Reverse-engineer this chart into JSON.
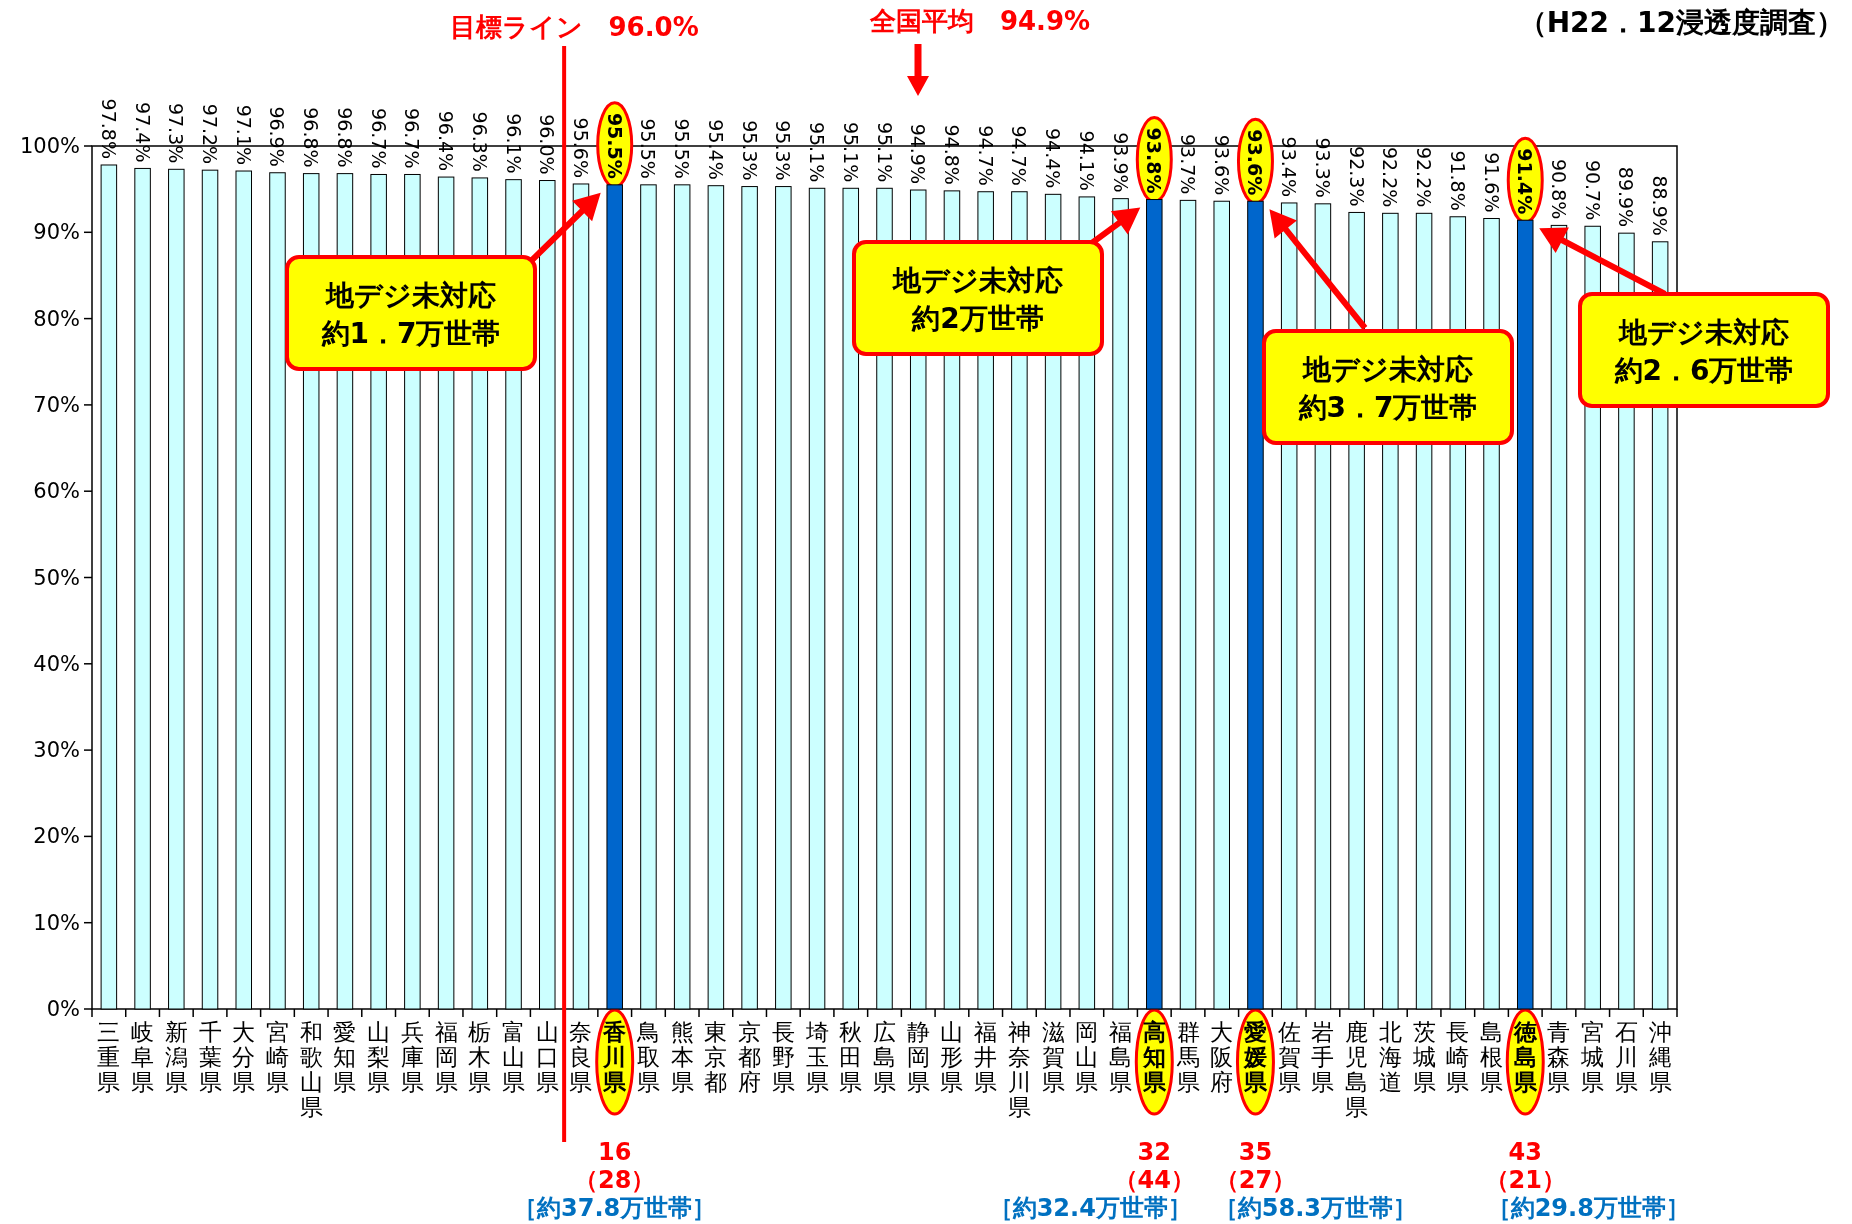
{
  "chart_data": {
    "type": "bar",
    "subtitle": "（H22．12浸透度調査）",
    "categories": [
      "三重県",
      "岐阜県",
      "新潟県",
      "千葉県",
      "大分県",
      "宮崎県",
      "和歌山県",
      "愛知県",
      "山梨県",
      "兵庫県",
      "福岡県",
      "栃木県",
      "富山県",
      "山口県",
      "奈良県",
      "香川県",
      "鳥取県",
      "熊本県",
      "東京都",
      "京都府",
      "長野県",
      "埼玉県",
      "秋田県",
      "広島県",
      "静岡県",
      "山形県",
      "福井県",
      "神奈川県",
      "滋賀県",
      "岡山県",
      "福島県",
      "高知県",
      "群馬県",
      "大阪府",
      "愛媛県",
      "佐賀県",
      "岩手県",
      "鹿児島県",
      "北海道",
      "茨城県",
      "長崎県",
      "島根県",
      "徳島県",
      "青森県",
      "宮城県",
      "石川県",
      "沖縄県"
    ],
    "values": [
      97.8,
      97.4,
      97.3,
      97.2,
      97.1,
      96.9,
      96.8,
      96.8,
      96.7,
      96.7,
      96.4,
      96.3,
      96.1,
      96.0,
      95.6,
      95.5,
      95.5,
      95.5,
      95.4,
      95.3,
      95.3,
      95.1,
      95.1,
      95.1,
      94.9,
      94.8,
      94.7,
      94.7,
      94.4,
      94.1,
      93.9,
      93.8,
      93.7,
      93.6,
      93.6,
      93.4,
      93.3,
      92.3,
      92.2,
      92.2,
      91.8,
      91.6,
      91.4,
      90.8,
      90.7,
      89.9,
      88.9
    ],
    "value_labels": [
      "97.8%",
      "97.4%",
      "97.3%",
      "97.2%",
      "97.1%",
      "96.9%",
      "96.8%",
      "96.8%",
      "96.7%",
      "96.7%",
      "96.4%",
      "96.3%",
      "96.1%",
      "96.0%",
      "95.6%",
      "95.5%",
      "95.5%",
      "95.5%",
      "95.4%",
      "95.3%",
      "95.3%",
      "95.1%",
      "95.1%",
      "95.1%",
      "94.9%",
      "94.8%",
      "94.7%",
      "94.7%",
      "94.4%",
      "94.1%",
      "93.9%",
      "93.8%",
      "93.7%",
      "93.6%",
      "93.6%",
      "93.4%",
      "93.3%",
      "92.3%",
      "92.2%",
      "92.2%",
      "91.8%",
      "91.6%",
      "91.4%",
      "90.8%",
      "90.7%",
      "89.9%",
      "88.9%"
    ],
    "colors": [
      "#ccffff",
      "#ccffff",
      "#ccffff",
      "#ccffff",
      "#ccffff",
      "#ccffff",
      "#ccffff",
      "#ccffff",
      "#ccffff",
      "#ccffff",
      "#ccffff",
      "#ccffff",
      "#ccffff",
      "#ccffff",
      "#ccffff",
      "#0066cc",
      "#ccffff",
      "#ccffff",
      "#ccffff",
      "#ccffff",
      "#ccffff",
      "#ccffff",
      "#ccffff",
      "#ccffff",
      "#ccffff",
      "#ccffff",
      "#ccffff",
      "#ccffff",
      "#ccffff",
      "#ccffff",
      "#ccffff",
      "#0066cc",
      "#ccffff",
      "#ccffff",
      "#0066cc",
      "#ccffff",
      "#ccffff",
      "#ccffff",
      "#ccffff",
      "#ccffff",
      "#ccffff",
      "#ccffff",
      "#0066cc",
      "#ccffff",
      "#ccffff",
      "#ccffff",
      "#ccffff"
    ],
    "ylim": [
      0,
      100
    ],
    "yticks": [
      {
        "value": 0,
        "label": "0%"
      },
      {
        "value": 10,
        "label": "10%"
      },
      {
        "value": 20,
        "label": "20%"
      },
      {
        "value": 30,
        "label": "30%"
      },
      {
        "value": 40,
        "label": "40%"
      },
      {
        "value": 50,
        "label": "50%"
      },
      {
        "value": 60,
        "label": "60%"
      },
      {
        "value": 70,
        "label": "70%"
      },
      {
        "value": 80,
        "label": "80%"
      },
      {
        "value": 90,
        "label": "90%"
      },
      {
        "value": 100,
        "label": "100%"
      }
    ],
    "ref_lines": [
      {
        "axis": "x",
        "value": "山口県",
        "label": "目標ライン　96.0%",
        "color": "#ff0000"
      }
    ],
    "annotations": [
      "全国平均　94.9%",
      "地デジ未対応",
      "約1．7万世帯",
      "地デジ未対応",
      "約2万世帯",
      "地デジ未対応",
      "約3．7万世帯",
      "地デジ未対応",
      "約2．6万世帯",
      "16",
      "（28）",
      "［約37.8万世帯］",
      "32",
      "（44）",
      "［約32.4万世帯］",
      "35",
      "（27）",
      "［約58.3万世帯］",
      "43",
      "（21）",
      "［約29.8万世帯］"
    ]
  }
}
